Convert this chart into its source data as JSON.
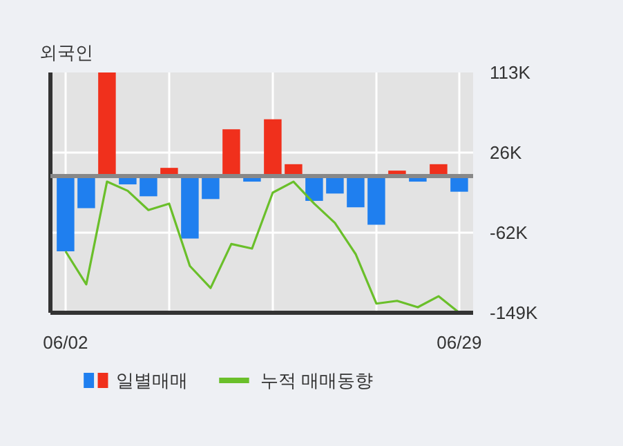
{
  "chart_data": {
    "type": "bar",
    "title": "외국인",
    "categories": [
      "06/02",
      null,
      null,
      null,
      null,
      null,
      null,
      null,
      null,
      null,
      null,
      null,
      null,
      null,
      null,
      null,
      null,
      null,
      null,
      "06/29"
    ],
    "series": [
      {
        "name": "일별매매",
        "colors": [
          "#1f7fef",
          "#1f7fef",
          "#f0301c",
          "#1f7fef",
          "#1f7fef",
          "#f0301c",
          "#1f7fef",
          "#1f7fef",
          "#f0301c",
          "#1f7fef",
          "#f0301c",
          "#f0301c",
          "#1f7fef",
          "#1f7fef",
          "#1f7fef",
          "#1f7fef",
          "#f0301c",
          "#1f7fef",
          "#f0301c",
          "#1f7fef"
        ],
        "values": [
          -82000,
          -35000,
          113000,
          -9000,
          -22000,
          9000,
          -68000,
          -25000,
          51000,
          -6000,
          62000,
          13000,
          -27000,
          -19000,
          -34000,
          -53000,
          6000,
          -6000,
          13000,
          -17000
        ]
      },
      {
        "name": "누적 매매동향",
        "type": "line",
        "color": "#6abf2a",
        "values": [
          -82000,
          -118000,
          -6000,
          -16000,
          -37000,
          -30000,
          -98000,
          -122000,
          -74000,
          -79000,
          -18000,
          -6000,
          -30000,
          -51000,
          -85000,
          -139000,
          -136000,
          -143000,
          -131000,
          -149000
        ]
      }
    ],
    "ylim": [
      -149000,
      113000
    ],
    "yticks": [
      {
        "value": 113000,
        "label": "113K"
      },
      {
        "value": 26000,
        "label": "26K"
      },
      {
        "value": -62000,
        "label": "-62K"
      },
      {
        "value": -149000,
        "label": "-149K"
      }
    ],
    "grid": true,
    "legend": "bottom"
  }
}
